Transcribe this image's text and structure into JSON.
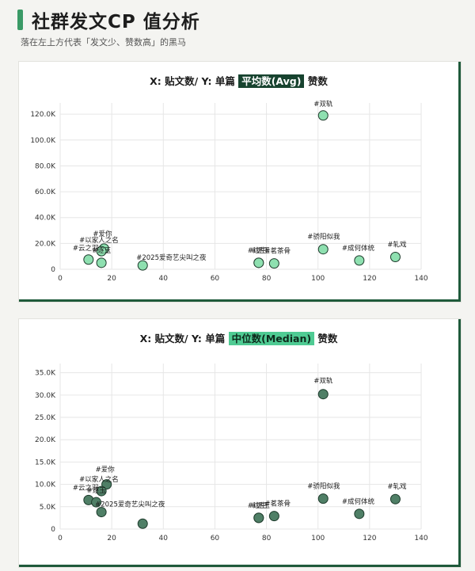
{
  "header": {
    "title": "社群发文CP 值分析",
    "subtitle": "落在左上方代表「发文少、赞数高」的黑马"
  },
  "colors": {
    "accent": "#3a9a66",
    "panel_shadow": "#1f5a3b",
    "avg_point": "#8ee0b0",
    "median_point": "#4f7f66"
  },
  "chart_data": [
    {
      "type": "scatter",
      "title_parts": {
        "before": "X: 贴文数/ Y: 单篇 ",
        "highlight": "平均数(Avg)",
        "after": " 赞数"
      },
      "xlim": [
        0,
        140
      ],
      "ylim": [
        0,
        125000
      ],
      "xticks": [
        0,
        20,
        40,
        60,
        80,
        100,
        120,
        140
      ],
      "xtick_labels": [
        "0",
        "20",
        "40",
        "60",
        "80",
        "100",
        "120",
        "140"
      ],
      "yticks": [
        0,
        20000,
        40000,
        60000,
        80000,
        100000,
        120000
      ],
      "ytick_labels": [
        "0",
        "20.0K",
        "40.0K",
        "60.0K",
        "80.0K",
        "100.0K",
        "120.0K"
      ],
      "grid": true,
      "point_color": "#8ee0b0",
      "points": [
        {
          "label": "#双轨",
          "x": 102,
          "y": 119000
        },
        {
          "label": "#骄阳似我",
          "x": 102,
          "y": 15500
        },
        {
          "label": "#成何体统",
          "x": 116,
          "y": 6800
        },
        {
          "label": "#轧戏",
          "x": 130,
          "y": 9500
        },
        {
          "label": "#边生",
          "x": 77,
          "y": 5000
        },
        {
          "label": "#逐玉",
          "x": 77,
          "y": 5000
        },
        {
          "label": "#茗茶骨",
          "x": 83,
          "y": 4500
        },
        {
          "label": "#爱你",
          "x": 17,
          "y": 16000
        },
        {
          "label": "#以家人之名",
          "x": 16,
          "y": 14000
        },
        {
          "label": "#云之羽",
          "x": 11,
          "y": 7500
        },
        {
          "label": "#逐玉",
          "x": 16,
          "y": 5000
        },
        {
          "label": "#2025爱奇艺尖叫之夜",
          "x": 32,
          "y": 3000
        }
      ]
    },
    {
      "type": "scatter",
      "title_parts": {
        "before": "X: 贴文数/ Y: 单篇 ",
        "highlight": "中位数(Median)",
        "after": " 赞数"
      },
      "xlim": [
        0,
        140
      ],
      "ylim": [
        0,
        36000
      ],
      "xticks": [
        0,
        20,
        40,
        60,
        80,
        100,
        120,
        140
      ],
      "xtick_labels": [
        "0",
        "20",
        "40",
        "60",
        "80",
        "100",
        "120",
        "140"
      ],
      "yticks": [
        0,
        5000,
        10000,
        15000,
        20000,
        25000,
        30000,
        35000
      ],
      "ytick_labels": [
        "0",
        "5.0K",
        "10.0K",
        "15.0K",
        "20.0K",
        "25.0K",
        "30.0K",
        "35.0K"
      ],
      "grid": true,
      "point_color": "#4f7f66",
      "points": [
        {
          "label": "#双轨",
          "x": 102,
          "y": 30200
        },
        {
          "label": "#骄阳似我",
          "x": 102,
          "y": 6800
        },
        {
          "label": "#成何体统",
          "x": 116,
          "y": 3400
        },
        {
          "label": "#轧戏",
          "x": 130,
          "y": 6700
        },
        {
          "label": "#边生",
          "x": 77,
          "y": 2500
        },
        {
          "label": "#逐玉",
          "x": 77,
          "y": 2500
        },
        {
          "label": "#茗茶骨",
          "x": 83,
          "y": 2900
        },
        {
          "label": "#爱你",
          "x": 18,
          "y": 10000
        },
        {
          "label": "#以家人之名",
          "x": 16,
          "y": 8500
        },
        {
          "label": "#云之羽",
          "x": 11,
          "y": 6500
        },
        {
          "label": "#逐玉",
          "x": 14,
          "y": 6000
        },
        {
          "label": "#2025爱奇艺尖叫之夜",
          "x": 16,
          "y": 3800
        },
        {
          "label": "",
          "x": 32,
          "y": 1200
        }
      ]
    }
  ]
}
